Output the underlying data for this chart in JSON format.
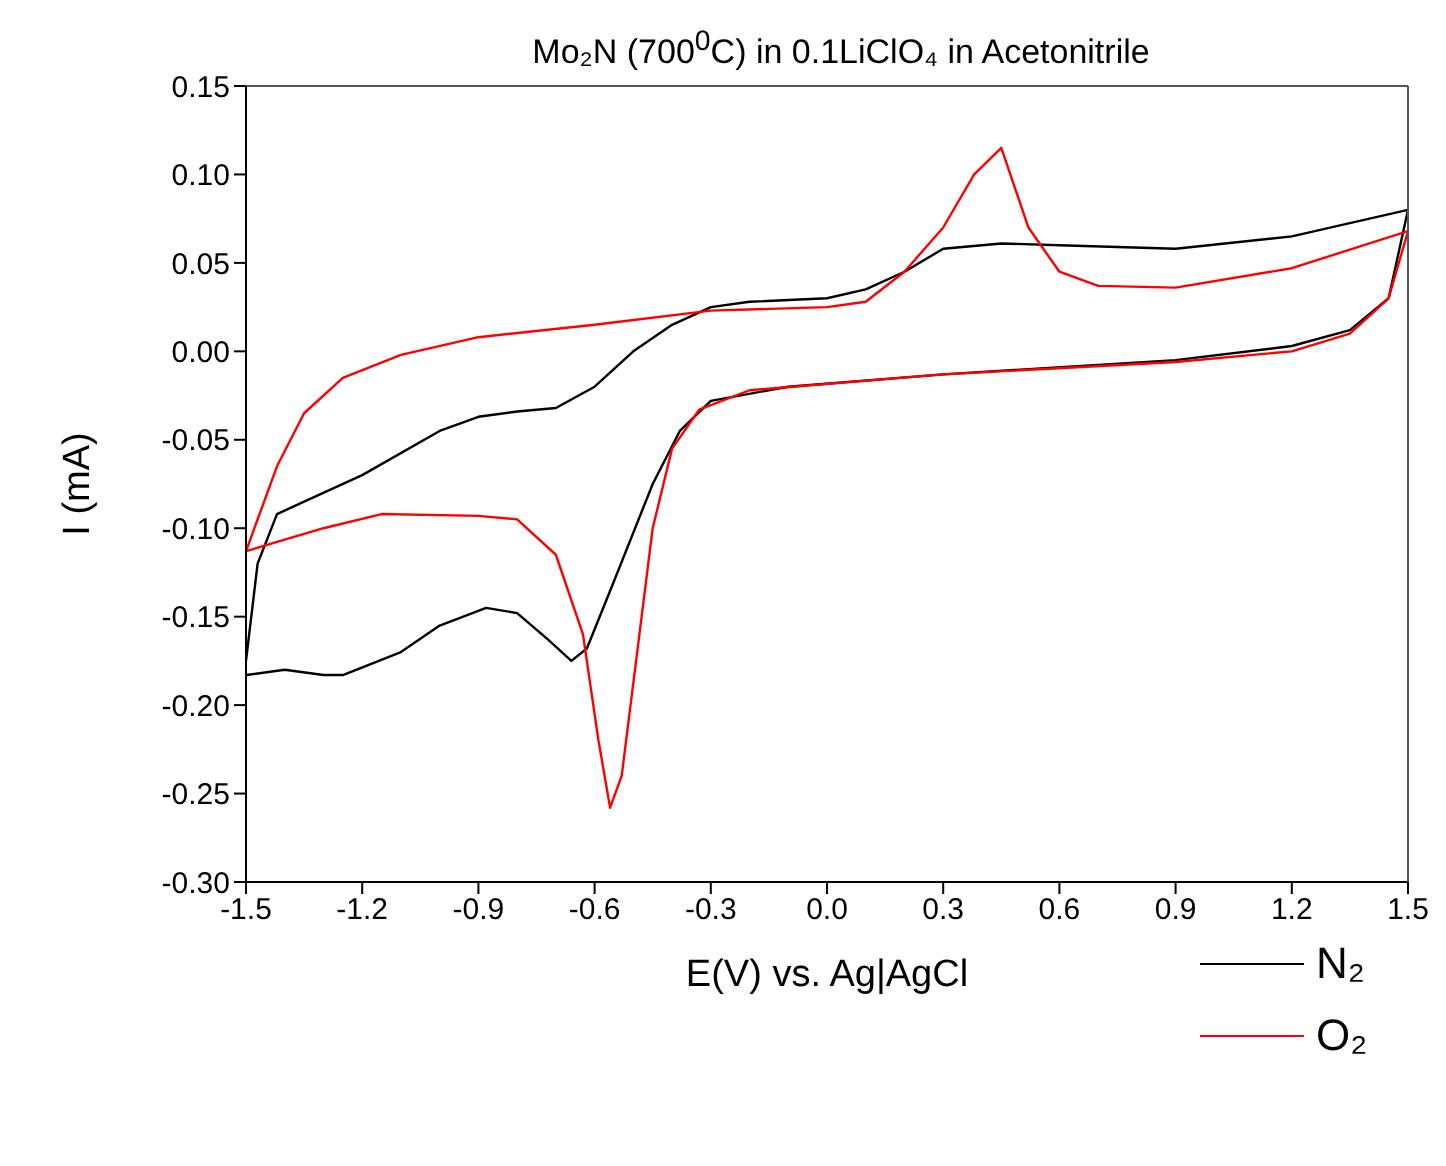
{
  "chart_data": {
    "type": "line",
    "title": "Mo₂N (700$^{0}$C) in 0.1LiClO₄ in Acetonitrile",
    "xlabel": "E(V) vs. Ag|AgCl",
    "ylabel": "I (mA)",
    "xlim": [
      -1.5,
      1.5
    ],
    "xticks": [
      {
        "value": -1.5,
        "label": "-1.5"
      },
      {
        "value": -1.2,
        "label": "-1.2"
      },
      {
        "value": -0.9,
        "label": "-0.9"
      },
      {
        "value": -0.6,
        "label": "-0.6"
      },
      {
        "value": -0.3,
        "label": "-0.3"
      },
      {
        "value": 0,
        "label": "0.0"
      },
      {
        "value": 0.3,
        "label": "0.3"
      },
      {
        "value": 0.6,
        "label": "0.6"
      },
      {
        "value": 0.9,
        "label": "0.9"
      },
      {
        "value": 1.2,
        "label": "1.2"
      },
      {
        "value": 1.5,
        "label": "1.5"
      }
    ],
    "ylim": [
      -0.3,
      0.15
    ],
    "yticks": [
      {
        "value": -0.3,
        "label": "-0.30"
      },
      {
        "value": -0.25,
        "label": "-0.25"
      },
      {
        "value": -0.2,
        "label": "-0.20"
      },
      {
        "value": -0.15,
        "label": "-0.15"
      },
      {
        "value": -0.1,
        "label": "-0.10"
      },
      {
        "value": -0.05,
        "label": "-0.05"
      },
      {
        "value": 0,
        "label": "0.00"
      },
      {
        "value": 0.05,
        "label": "0.05"
      },
      {
        "value": 0.1,
        "label": "0.10"
      },
      {
        "value": 0.15,
        "label": "0.15"
      }
    ],
    "legend": "bottom right",
    "marker": "none",
    "line_style": "solid",
    "series": [
      {
        "name": "N₂",
        "color": "#000000",
        "x": [
          1.5,
          1.2,
          0.9,
          0.6,
          0.45,
          0.3,
          0.2,
          0.1,
          0.0,
          -0.2,
          -0.3,
          -0.4,
          -0.5,
          -0.6,
          -0.7,
          -0.8,
          -0.9,
          -1.0,
          -1.2,
          -1.35,
          -1.42,
          -1.47,
          -1.5
        ],
        "values": [
          0.08,
          0.065,
          0.058,
          0.06,
          0.061,
          0.058,
          0.045,
          0.035,
          0.03,
          0.028,
          0.025,
          0.015,
          0.0,
          -0.02,
          -0.032,
          -0.034,
          -0.037,
          -0.045,
          -0.07,
          -0.085,
          -0.092,
          -0.12,
          -0.175
        ]
      },
      {
        "color": "#000000",
        "x": [
          -1.5,
          -1.4,
          -1.3,
          -1.25,
          -1.1,
          -1.0,
          -0.88,
          -0.8,
          -0.72,
          -0.66,
          -0.62,
          -0.55,
          -0.45,
          -0.38,
          -0.3,
          -0.1,
          0.3,
          0.9,
          1.2,
          1.35,
          1.45,
          1.5
        ],
        "values": [
          -0.183,
          -0.18,
          -0.183,
          -0.183,
          -0.17,
          -0.155,
          -0.145,
          -0.148,
          -0.163,
          -0.175,
          -0.168,
          -0.13,
          -0.075,
          -0.045,
          -0.028,
          -0.02,
          -0.013,
          -0.005,
          0.003,
          0.012,
          0.03,
          0.08
        ]
      },
      {
        "name": "O₂",
        "color": "#ff0000",
        "x": [
          1.5,
          1.2,
          0.9,
          0.7,
          0.6,
          0.52,
          0.45,
          0.38,
          0.3,
          0.2,
          0.1,
          0.0,
          -0.3,
          -0.6,
          -0.9,
          -1.1,
          -1.25,
          -1.35,
          -1.42,
          -1.5
        ],
        "values": [
          0.068,
          0.047,
          0.036,
          0.037,
          0.045,
          0.07,
          0.115,
          0.1,
          0.07,
          0.045,
          0.028,
          0.025,
          0.023,
          0.015,
          0.008,
          -0.002,
          -0.015,
          -0.035,
          -0.065,
          -0.113
        ]
      },
      {
        "color": "#ff0000",
        "x": [
          -1.5,
          -1.3,
          -1.15,
          -0.9,
          -0.8,
          -0.7,
          -0.63,
          -0.59,
          -0.56,
          -0.53,
          -0.49,
          -0.45,
          -0.4,
          -0.33,
          -0.2,
          0.3,
          0.9,
          1.2,
          1.35,
          1.45,
          1.5
        ],
        "values": [
          -0.113,
          -0.1,
          -0.092,
          -0.093,
          -0.095,
          -0.115,
          -0.16,
          -0.22,
          -0.258,
          -0.24,
          -0.17,
          -0.1,
          -0.055,
          -0.033,
          -0.022,
          -0.013,
          -0.006,
          0.0,
          0.01,
          0.03,
          0.068
        ]
      }
    ]
  }
}
